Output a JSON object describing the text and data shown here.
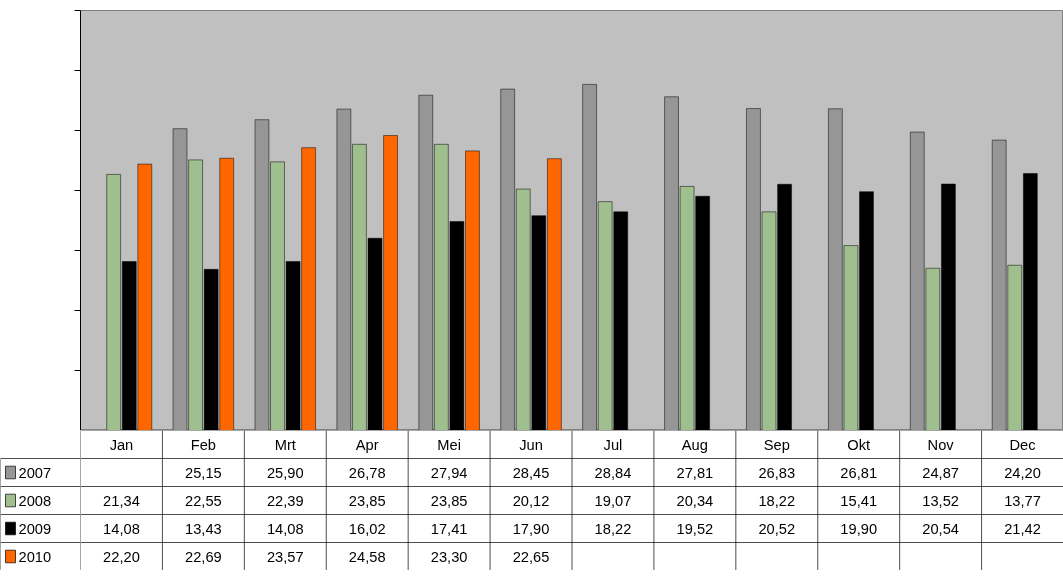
{
  "chart_data": {
    "type": "bar",
    "categories": [
      "Jan",
      "Feb",
      "Mrt",
      "Apr",
      "Mei",
      "Jun",
      "Jul",
      "Aug",
      "Sep",
      "Okt",
      "Nov",
      "Dec"
    ],
    "series": [
      {
        "name": "2007",
        "color": "#969696",
        "values": [
          null,
          25.15,
          25.9,
          26.78,
          27.94,
          28.45,
          28.84,
          27.81,
          26.83,
          26.81,
          24.87,
          24.2
        ],
        "value_labels": [
          null,
          "25,15",
          "25,90",
          "26,78",
          "27,94",
          "28,45",
          "28,84",
          "27,81",
          "26,83",
          "26,81",
          "24,87",
          "24,20"
        ]
      },
      {
        "name": "2008",
        "color": "#9fbf8f",
        "values": [
          21.34,
          22.55,
          22.39,
          23.85,
          23.85,
          20.12,
          19.07,
          20.34,
          18.22,
          15.41,
          13.52,
          13.77
        ],
        "value_labels": [
          "21,34",
          "22,55",
          "22,39",
          "23,85",
          "23,85",
          "20,12",
          "19,07",
          "20,34",
          "18,22",
          "15,41",
          "13,52",
          "13,77"
        ]
      },
      {
        "name": "2009",
        "color": "#000000",
        "values": [
          14.08,
          13.43,
          14.08,
          16.02,
          17.41,
          17.9,
          18.22,
          19.52,
          20.52,
          19.9,
          20.54,
          21.42
        ],
        "value_labels": [
          "14,08",
          "13,43",
          "14,08",
          "16,02",
          "17,41",
          "17,90",
          "18,22",
          "19,52",
          "20,52",
          "19,90",
          "20,54",
          "21,42"
        ]
      },
      {
        "name": "2010",
        "color": "#ff6600",
        "values": [
          22.2,
          22.69,
          23.57,
          24.58,
          23.3,
          22.65,
          null,
          null,
          null,
          null,
          null,
          null
        ],
        "value_labels": [
          "22,20",
          "22,69",
          "23,57",
          "24,58",
          "23,30",
          "22,65",
          null,
          null,
          null,
          null,
          null,
          null
        ]
      }
    ],
    "ylim": [
      0,
      35
    ],
    "yticks": [
      {
        "value": 0,
        "label": null
      },
      {
        "value": 5,
        "label": null
      },
      {
        "value": 10,
        "label": null
      },
      {
        "value": 15,
        "label": null
      },
      {
        "value": 20,
        "label": null
      },
      {
        "value": 25,
        "label": null
      },
      {
        "value": 30,
        "label": null
      },
      {
        "value": 35,
        "label": null
      }
    ],
    "tick_labels": "x",
    "legend": "bottom left"
  }
}
